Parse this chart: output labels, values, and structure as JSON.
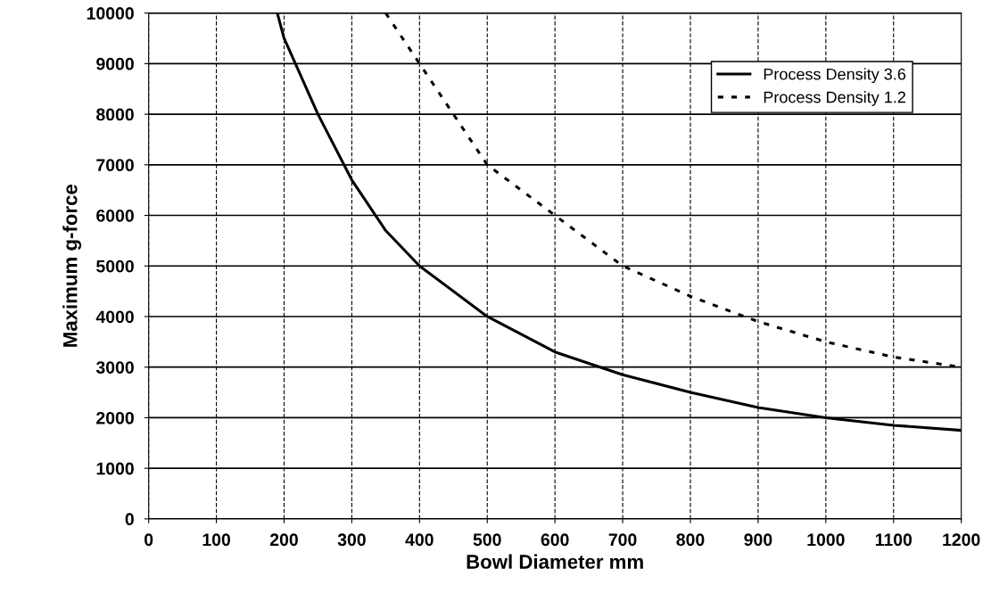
{
  "chart_data": {
    "type": "line",
    "xlabel": "Bowl Diameter mm",
    "ylabel": "Maximum g-force",
    "xlim": [
      0,
      1200
    ],
    "ylim": [
      0,
      10000
    ],
    "xticks": [
      0,
      100,
      200,
      300,
      400,
      500,
      600,
      700,
      800,
      900,
      1000,
      1100,
      1200
    ],
    "yticks": [
      0,
      1000,
      2000,
      3000,
      4000,
      5000,
      6000,
      7000,
      8000,
      9000,
      10000
    ],
    "grid": true,
    "legend": "top right",
    "marker": "none",
    "series": [
      {
        "name": "Process Density 3.6",
        "color": "#000000",
        "line_style": "solid",
        "x": [
          190,
          200,
          250,
          300,
          350,
          400,
          500,
          600,
          700,
          800,
          900,
          1000,
          1100,
          1200
        ],
        "values": [
          10000,
          9500,
          8000,
          6700,
          5700,
          5000,
          4000,
          3300,
          2850,
          2500,
          2200,
          2000,
          1850,
          1750
        ]
      },
      {
        "name": "Process Density 1.2",
        "color": "#000000",
        "line_style": "dotted",
        "x": [
          350,
          400,
          500,
          600,
          700,
          800,
          900,
          1000,
          1100,
          1200
        ],
        "values": [
          10000,
          9000,
          7000,
          6000,
          5000,
          4400,
          3900,
          3500,
          3200,
          3000
        ]
      }
    ]
  }
}
